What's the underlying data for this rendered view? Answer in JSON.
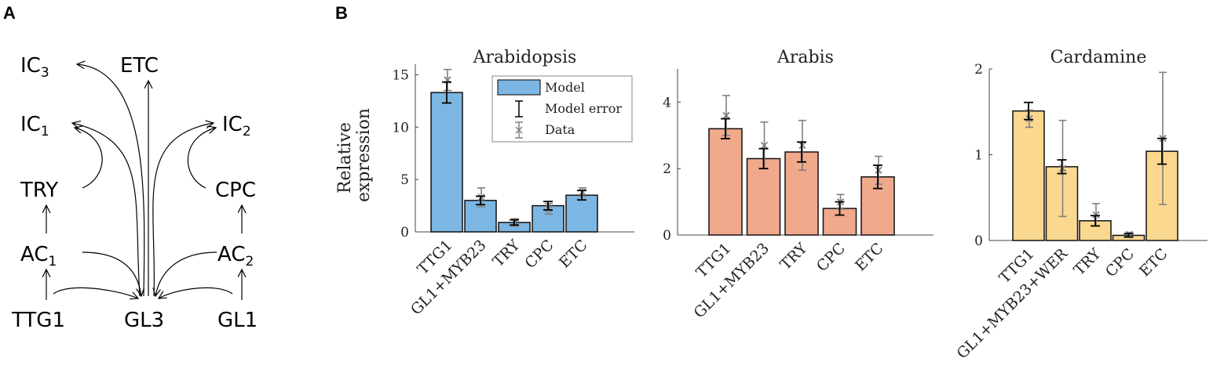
{
  "panels": {
    "a": "A",
    "b": "B"
  },
  "network": {
    "nodes": {
      "ic3": {
        "base": "IC",
        "sub": "3"
      },
      "etc": {
        "base": "ETC",
        "sub": ""
      },
      "ic1": {
        "base": "IC",
        "sub": "1"
      },
      "ic2": {
        "base": "IC",
        "sub": "2"
      },
      "try": {
        "base": "TRY",
        "sub": ""
      },
      "cpc": {
        "base": "CPC",
        "sub": ""
      },
      "ac1": {
        "base": "AC",
        "sub": "1"
      },
      "ac2": {
        "base": "AC",
        "sub": "2"
      },
      "ttg1": {
        "base": "TTG1",
        "sub": ""
      },
      "gl3": {
        "base": "GL3",
        "sub": ""
      },
      "gl1": {
        "base": "GL1",
        "sub": ""
      }
    },
    "edges": [
      [
        "gl3",
        "etc"
      ],
      [
        "gl3",
        "ic3"
      ],
      [
        "gl3",
        "ic1"
      ],
      [
        "gl3",
        "ic2"
      ],
      [
        "ac1",
        "gl3"
      ],
      [
        "ac2",
        "gl3"
      ],
      [
        "ac1",
        "try"
      ],
      [
        "ac2",
        "cpc"
      ],
      [
        "ttg1",
        "ac1"
      ],
      [
        "gl1",
        "ac2"
      ],
      [
        "try",
        "ic1"
      ],
      [
        "cpc",
        "ic2"
      ],
      [
        "ttg1",
        "gl3"
      ],
      [
        "gl1",
        "gl3"
      ]
    ]
  },
  "ylabel_lines": [
    "Relative",
    "expression"
  ],
  "legend": {
    "model": "Model",
    "model_error": "Model error",
    "data": "Data"
  },
  "colors": {
    "arabidopsis": "#7cb6e2",
    "arabis": "#f0a98b",
    "cardamine": "#fbd88f",
    "error": "#000000",
    "data": "#808080"
  },
  "chart_data": [
    {
      "type": "bar",
      "title": "Arabidopsis",
      "categories": [
        "TTG1",
        "GL1+MYB23",
        "TRY",
        "CPC",
        "ETC"
      ],
      "series": [
        {
          "name": "Model",
          "values": [
            13.3,
            3.0,
            0.9,
            2.5,
            3.5
          ],
          "error": [
            1.0,
            0.4,
            0.25,
            0.4,
            0.45
          ]
        },
        {
          "name": "Data",
          "values": [
            14.5,
            3.3,
            0.9,
            2.2,
            3.8
          ],
          "error": [
            1.0,
            0.9,
            0.35,
            0.5,
            0.4
          ]
        }
      ],
      "yticks": [
        0,
        5,
        10,
        15
      ],
      "ylim": [
        0,
        16
      ],
      "ylabel": "Relative expression"
    },
    {
      "type": "bar",
      "title": "Arabis",
      "categories": [
        "TTG1",
        "GL1+MYB23",
        "TRY",
        "CPC",
        "ETC"
      ],
      "series": [
        {
          "name": "Model",
          "values": [
            3.2,
            2.3,
            2.5,
            0.8,
            1.75
          ],
          "error": [
            0.3,
            0.3,
            0.3,
            0.2,
            0.35
          ]
        },
        {
          "name": "Data",
          "values": [
            3.6,
            2.7,
            2.7,
            1.0,
            1.95
          ],
          "error": [
            0.6,
            0.7,
            0.75,
            0.22,
            0.42
          ]
        }
      ],
      "yticks": [
        0,
        2,
        4
      ],
      "ylim": [
        0,
        5
      ],
      "ylabel": ""
    },
    {
      "type": "bar",
      "title": "Cardamine",
      "categories": [
        "TTG1",
        "GL1+MYB23+WER",
        "TRY",
        "CPC",
        "ETC"
      ],
      "series": [
        {
          "name": "Model",
          "values": [
            1.51,
            0.86,
            0.23,
            0.06,
            1.04
          ],
          "error": [
            0.1,
            0.08,
            0.06,
            0.02,
            0.15
          ]
        },
        {
          "name": "Data",
          "values": [
            1.42,
            0.84,
            0.3,
            0.07,
            1.19
          ],
          "error": [
            0.1,
            0.56,
            0.13,
            0.025,
            0.77
          ]
        }
      ],
      "yticks": [
        0,
        1,
        2
      ],
      "ylim": [
        0,
        2
      ],
      "ylabel": ""
    }
  ]
}
